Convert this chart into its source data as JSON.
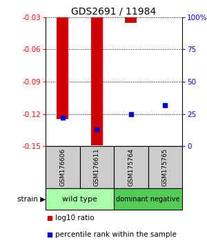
{
  "title": "GDS2691 / 11984",
  "samples": [
    "GSM176606",
    "GSM176611",
    "GSM175764",
    "GSM175765"
  ],
  "log10_ratio": [
    -0.125,
    -0.149,
    -0.035,
    -0.03
  ],
  "percentile_rank_pct": [
    22,
    13,
    25,
    32
  ],
  "ylim_left": [
    -0.15,
    -0.03
  ],
  "ylim_right": [
    0,
    100
  ],
  "yticks_left": [
    -0.15,
    -0.12,
    -0.09,
    -0.06,
    -0.03
  ],
  "yticks_right": [
    0,
    25,
    50,
    75,
    100
  ],
  "bar_color": "#cc0000",
  "dot_color": "#0000cc",
  "groups": [
    {
      "label": "wild type",
      "samples": [
        0,
        1
      ],
      "color": "#aaffaa"
    },
    {
      "label": "dominant negative",
      "samples": [
        2,
        3
      ],
      "color": "#55cc55"
    }
  ],
  "sample_box_color": "#cccccc",
  "legend_red_label": "log10 ratio",
  "legend_blue_label": "percentile rank within the sample",
  "strain_label": "strain",
  "background_color": "#ffffff"
}
